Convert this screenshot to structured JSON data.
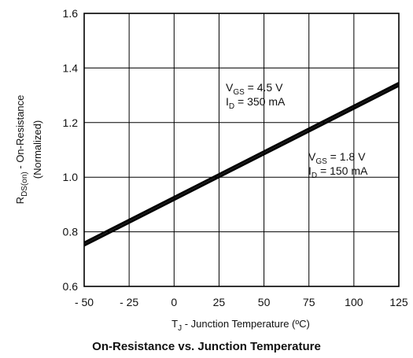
{
  "chart_data": {
    "type": "line",
    "title": "On-Resistance vs. Junction Temperature",
    "xlabel": {
      "main": "T",
      "sub": "J",
      "rest": " - Junction Temperature (ºC)"
    },
    "ylabel": {
      "main": "R",
      "sub": "DS(on)",
      "rest": " - On-Resistance",
      "line2": "(Normalized)"
    },
    "xlim": [
      -50,
      125
    ],
    "ylim": [
      0.6,
      1.6
    ],
    "xticks": [
      -50,
      -25,
      0,
      25,
      50,
      75,
      100,
      125
    ],
    "xtick_labels": [
      "- 50",
      "- 25",
      "0",
      "25",
      "50",
      "75",
      "100",
      "125"
    ],
    "yticks": [
      0.6,
      0.8,
      1.0,
      1.2,
      1.4,
      1.6
    ],
    "ytick_labels": [
      "0.6",
      "0.8",
      "1.0",
      "1.2",
      "1.4",
      "1.6"
    ],
    "grid": true,
    "series": [
      {
        "x": [
          -50,
          125
        ],
        "y": [
          0.76,
          1.345
        ]
      },
      {
        "x": [
          -50,
          125
        ],
        "y": [
          0.75,
          1.335
        ]
      }
    ],
    "annotations": [
      {
        "v_main": "V",
        "v_sub": "GS",
        "v_rest": " = 4.5 V",
        "i_main": "I",
        "i_sub": "D",
        "i_rest": " = 350 mA"
      },
      {
        "v_main": "V",
        "v_sub": "GS",
        "v_rest": " = 1.8 V",
        "i_main": "I",
        "i_sub": "D",
        "i_rest": " = 150 mA"
      }
    ]
  }
}
